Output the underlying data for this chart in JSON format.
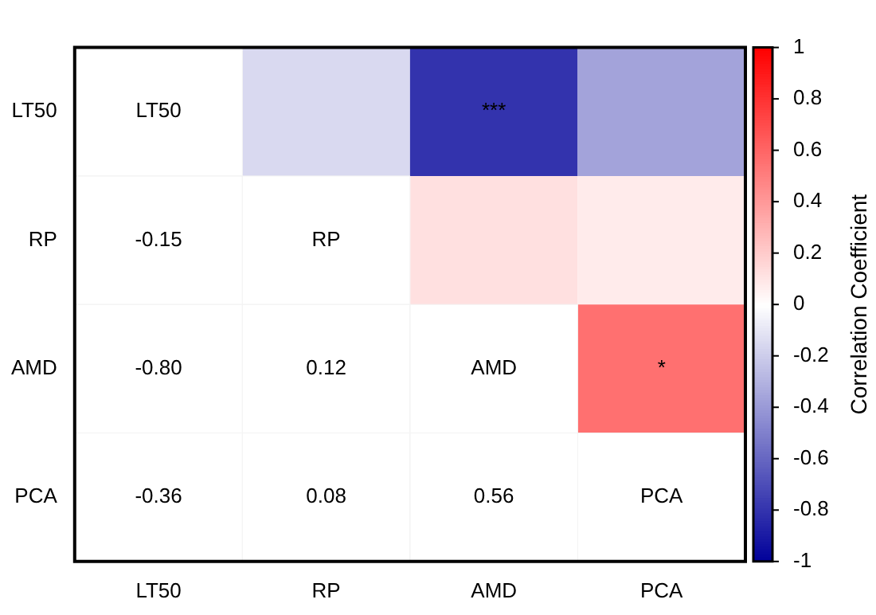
{
  "chart_data": {
    "type": "heatmap",
    "categories": [
      "LT50",
      "RP",
      "AMD",
      "PCA"
    ],
    "y_categories": [
      "LT50",
      "RP",
      "AMD",
      "PCA"
    ],
    "cells": [
      [
        null,
        -0.15,
        -0.8,
        -0.36
      ],
      [
        null,
        null,
        0.12,
        0.08
      ],
      [
        null,
        null,
        null,
        0.56
      ],
      [
        null,
        null,
        null,
        null
      ]
    ],
    "cell_labels": [
      [
        "LT50",
        null,
        "***",
        null
      ],
      [
        "-0.15",
        "RP",
        null,
        null
      ],
      [
        "-0.80",
        "0.12",
        "AMD",
        "*"
      ],
      [
        "-0.36",
        "0.08",
        "0.56",
        "PCA"
      ]
    ],
    "clim": [
      -1,
      1
    ],
    "cticks": [
      -1,
      -0.8,
      -0.6,
      -0.4,
      -0.2,
      0,
      0.2,
      0.4,
      0.6,
      0.8,
      1
    ],
    "clabel": "Correlation Coefficient"
  }
}
